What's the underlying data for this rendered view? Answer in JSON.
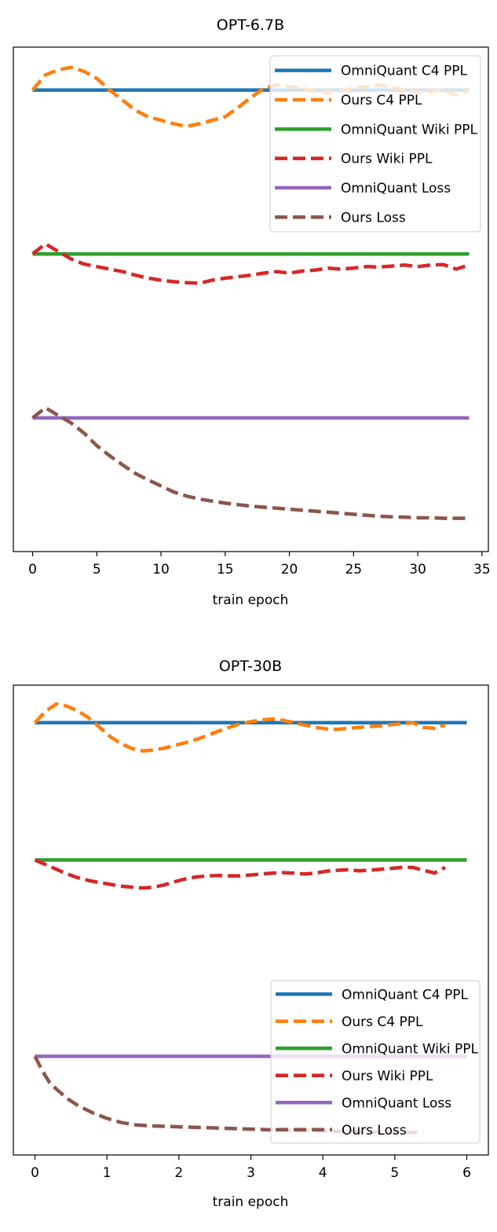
{
  "chart_data": [
    {
      "type": "line",
      "title": "OPT-6.7B",
      "xlabel": "train epoch",
      "ylabel": "",
      "xlim": [
        -1.5,
        35.5
      ],
      "ylim": [
        0,
        1
      ],
      "xticks": [
        0,
        5,
        10,
        15,
        20,
        25,
        30,
        35
      ],
      "yticks_visible": false,
      "legend_position": "upper right",
      "series": [
        {
          "name": "OmniQuant C4 PPL",
          "style": "solid",
          "color": "#1f77b4",
          "x": [
            0,
            34
          ],
          "y": [
            0.915,
            0.915
          ]
        },
        {
          "name": "Ours C4 PPL",
          "style": "dashed",
          "color": "#ff7f0e",
          "x": [
            0,
            1,
            2,
            3,
            4,
            5,
            6,
            7,
            8,
            9,
            10,
            11,
            12,
            13,
            14,
            15,
            16,
            17,
            18,
            19,
            20,
            21,
            22,
            23,
            24,
            25,
            26,
            27,
            28,
            29,
            30,
            31,
            32,
            33,
            34
          ],
          "y": [
            0.915,
            0.945,
            0.955,
            0.96,
            0.952,
            0.938,
            0.915,
            0.895,
            0.875,
            0.862,
            0.855,
            0.848,
            0.843,
            0.848,
            0.855,
            0.862,
            0.88,
            0.9,
            0.918,
            0.925,
            0.922,
            0.918,
            0.912,
            0.91,
            0.914,
            0.918,
            0.922,
            0.925,
            0.92,
            0.915,
            0.91,
            0.912,
            0.915,
            0.905,
            0.915
          ]
        },
        {
          "name": "OmniQuant Wiki PPL",
          "style": "solid",
          "color": "#2ca02c",
          "x": [
            0,
            34
          ],
          "y": [
            0.59,
            0.59
          ]
        },
        {
          "name": "Ours Wiki PPL",
          "style": "dashed",
          "color": "#d62728",
          "x": [
            0,
            1,
            2,
            3,
            4,
            5,
            6,
            7,
            8,
            9,
            10,
            11,
            12,
            13,
            14,
            15,
            16,
            17,
            18,
            19,
            20,
            21,
            22,
            23,
            24,
            25,
            26,
            27,
            28,
            29,
            30,
            31,
            32,
            33,
            34
          ],
          "y": [
            0.59,
            0.61,
            0.595,
            0.58,
            0.57,
            0.565,
            0.56,
            0.555,
            0.548,
            0.542,
            0.538,
            0.535,
            0.533,
            0.532,
            0.538,
            0.542,
            0.545,
            0.548,
            0.552,
            0.555,
            0.552,
            0.556,
            0.558,
            0.562,
            0.56,
            0.562,
            0.565,
            0.564,
            0.566,
            0.568,
            0.565,
            0.568,
            0.569,
            0.56,
            0.568
          ]
        },
        {
          "name": "OmniQuant Loss",
          "style": "solid",
          "color": "#9467bd",
          "x": [
            0,
            34
          ],
          "y": [
            0.265,
            0.265
          ]
        },
        {
          "name": "Ours Loss",
          "style": "dashed",
          "color": "#8c564b",
          "x": [
            0,
            1,
            2,
            3,
            4,
            5,
            6,
            7,
            8,
            9,
            10,
            11,
            12,
            13,
            14,
            15,
            16,
            17,
            18,
            19,
            20,
            21,
            22,
            23,
            24,
            25,
            26,
            27,
            28,
            29,
            30,
            31,
            32,
            33,
            34
          ],
          "y": [
            0.265,
            0.285,
            0.27,
            0.255,
            0.235,
            0.21,
            0.19,
            0.172,
            0.155,
            0.142,
            0.13,
            0.118,
            0.11,
            0.104,
            0.1,
            0.096,
            0.093,
            0.09,
            0.088,
            0.086,
            0.084,
            0.082,
            0.08,
            0.078,
            0.076,
            0.074,
            0.072,
            0.07,
            0.069,
            0.068,
            0.067,
            0.067,
            0.066,
            0.066,
            0.066
          ]
        }
      ]
    },
    {
      "type": "line",
      "title": "OPT-30B",
      "xlabel": "train epoch",
      "ylabel": "",
      "xlim": [
        -0.3,
        6.3
      ],
      "ylim": [
        0,
        1
      ],
      "xticks": [
        0,
        1,
        2,
        3,
        4,
        5,
        6
      ],
      "yticks_visible": false,
      "legend_position": "lower right",
      "series": [
        {
          "name": "OmniQuant C4 PPL",
          "style": "solid",
          "color": "#1f77b4",
          "x": [
            0,
            6
          ],
          "y": [
            0.92,
            0.92
          ]
        },
        {
          "name": "Ours C4 PPL",
          "style": "dashed",
          "color": "#ff7f0e",
          "x": [
            0,
            0.15,
            0.3,
            0.45,
            0.6,
            0.75,
            0.9,
            1.05,
            1.2,
            1.35,
            1.5,
            1.65,
            1.8,
            1.95,
            2.1,
            2.25,
            2.4,
            2.55,
            2.7,
            2.85,
            3.0,
            3.15,
            3.3,
            3.45,
            3.6,
            3.75,
            3.9,
            4.05,
            4.2,
            4.35,
            4.5,
            4.65,
            4.8,
            4.95,
            5.1,
            5.25,
            5.4,
            5.55,
            5.7
          ],
          "y": [
            0.92,
            0.945,
            0.96,
            0.955,
            0.945,
            0.93,
            0.91,
            0.89,
            0.875,
            0.865,
            0.86,
            0.862,
            0.866,
            0.872,
            0.878,
            0.885,
            0.893,
            0.902,
            0.91,
            0.918,
            0.922,
            0.926,
            0.928,
            0.925,
            0.92,
            0.915,
            0.91,
            0.907,
            0.906,
            0.908,
            0.91,
            0.912,
            0.913,
            0.916,
            0.918,
            0.92,
            0.91,
            0.908,
            0.915
          ]
        },
        {
          "name": "OmniQuant Wiki PPL",
          "style": "solid",
          "color": "#2ca02c",
          "x": [
            0,
            6
          ],
          "y": [
            0.628,
            0.628
          ]
        },
        {
          "name": "Ours Wiki PPL",
          "style": "dashed",
          "color": "#d62728",
          "x": [
            0,
            0.15,
            0.3,
            0.45,
            0.6,
            0.75,
            0.9,
            1.05,
            1.2,
            1.35,
            1.5,
            1.65,
            1.8,
            1.95,
            2.1,
            2.25,
            2.4,
            2.55,
            2.7,
            2.85,
            3.0,
            3.15,
            3.3,
            3.45,
            3.6,
            3.75,
            3.9,
            4.05,
            4.2,
            4.35,
            4.5,
            4.65,
            4.8,
            4.95,
            5.1,
            5.25,
            5.4,
            5.55,
            5.7
          ],
          "y": [
            0.628,
            0.618,
            0.608,
            0.598,
            0.59,
            0.584,
            0.58,
            0.576,
            0.572,
            0.57,
            0.568,
            0.57,
            0.575,
            0.582,
            0.588,
            0.592,
            0.594,
            0.595,
            0.594,
            0.594,
            0.596,
            0.598,
            0.6,
            0.601,
            0.6,
            0.598,
            0.6,
            0.604,
            0.606,
            0.607,
            0.605,
            0.606,
            0.608,
            0.61,
            0.612,
            0.612,
            0.606,
            0.6,
            0.612
          ]
        },
        {
          "name": "OmniQuant Loss",
          "style": "solid",
          "color": "#9467bd",
          "x": [
            0,
            6
          ],
          "y": [
            0.21,
            0.21
          ]
        },
        {
          "name": "Ours Loss",
          "style": "dashed",
          "color": "#8c564b",
          "x": [
            0,
            0.1,
            0.2,
            0.3,
            0.45,
            0.6,
            0.8,
            1.0,
            1.2,
            1.4,
            1.6,
            1.8,
            2.0,
            2.2,
            2.4,
            2.6,
            2.8,
            3.0,
            3.2,
            3.4,
            3.6,
            3.8,
            4.0,
            4.2,
            4.4,
            4.6,
            4.8,
            5.0,
            5.2,
            5.4
          ],
          "y": [
            0.21,
            0.18,
            0.155,
            0.14,
            0.12,
            0.105,
            0.09,
            0.078,
            0.069,
            0.064,
            0.062,
            0.061,
            0.06,
            0.059,
            0.058,
            0.057,
            0.056,
            0.055,
            0.054,
            0.053,
            0.052,
            0.052,
            0.051,
            0.05,
            0.05,
            0.049,
            0.049,
            0.048,
            0.048,
            0.048
          ]
        }
      ]
    }
  ]
}
